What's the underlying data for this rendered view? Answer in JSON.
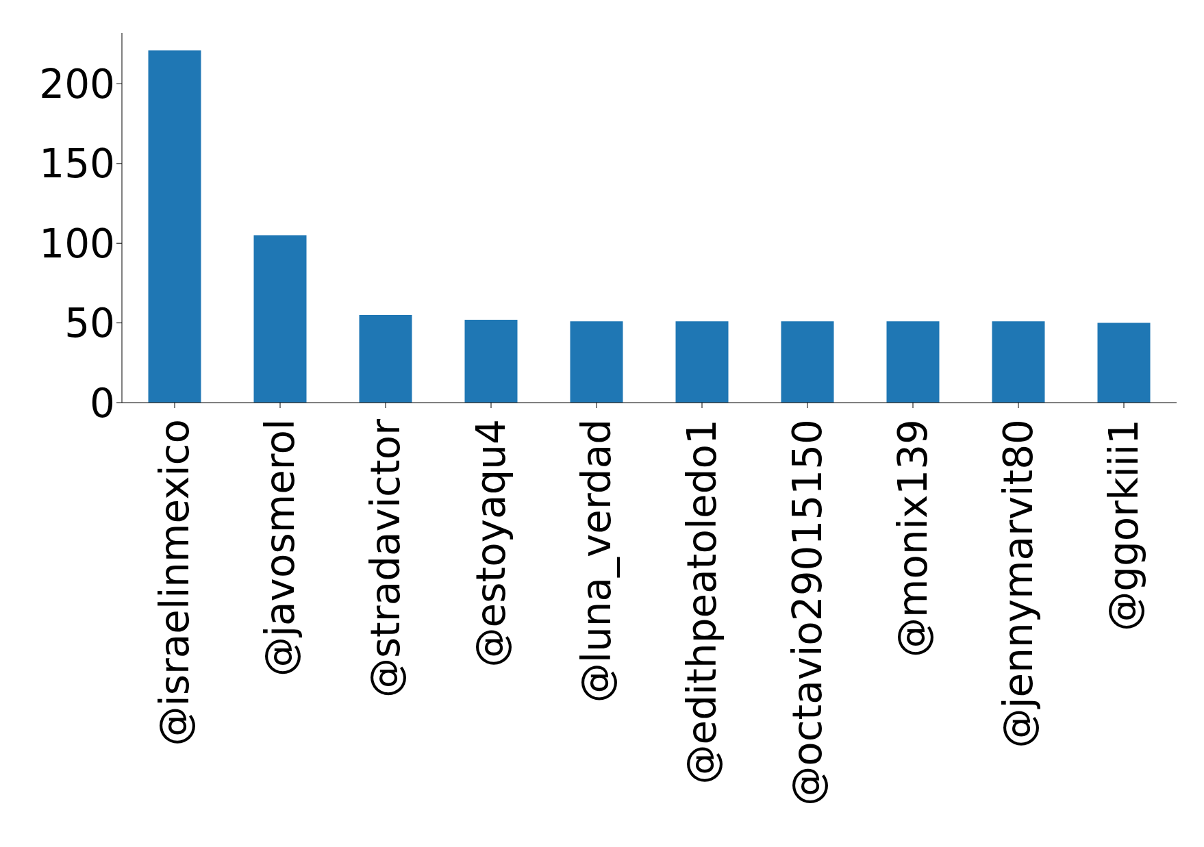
{
  "chart_data": {
    "type": "bar",
    "categories": [
      "@israelinmexico",
      "@javosmerol",
      "@stradavictor",
      "@estoyaqu4",
      "@luna_verdad",
      "@edithpeatoledo1",
      "@octavio29015150",
      "@monix139",
      "@jennymarvit80",
      "@ggorkiii1"
    ],
    "values": [
      221,
      105,
      55,
      52,
      51,
      51,
      51,
      51,
      51,
      50
    ],
    "color": "#1f77b4",
    "ylim": [
      0,
      232
    ],
    "yticks": [
      0,
      50,
      100,
      150,
      200
    ],
    "grid": false,
    "legend": false
  }
}
